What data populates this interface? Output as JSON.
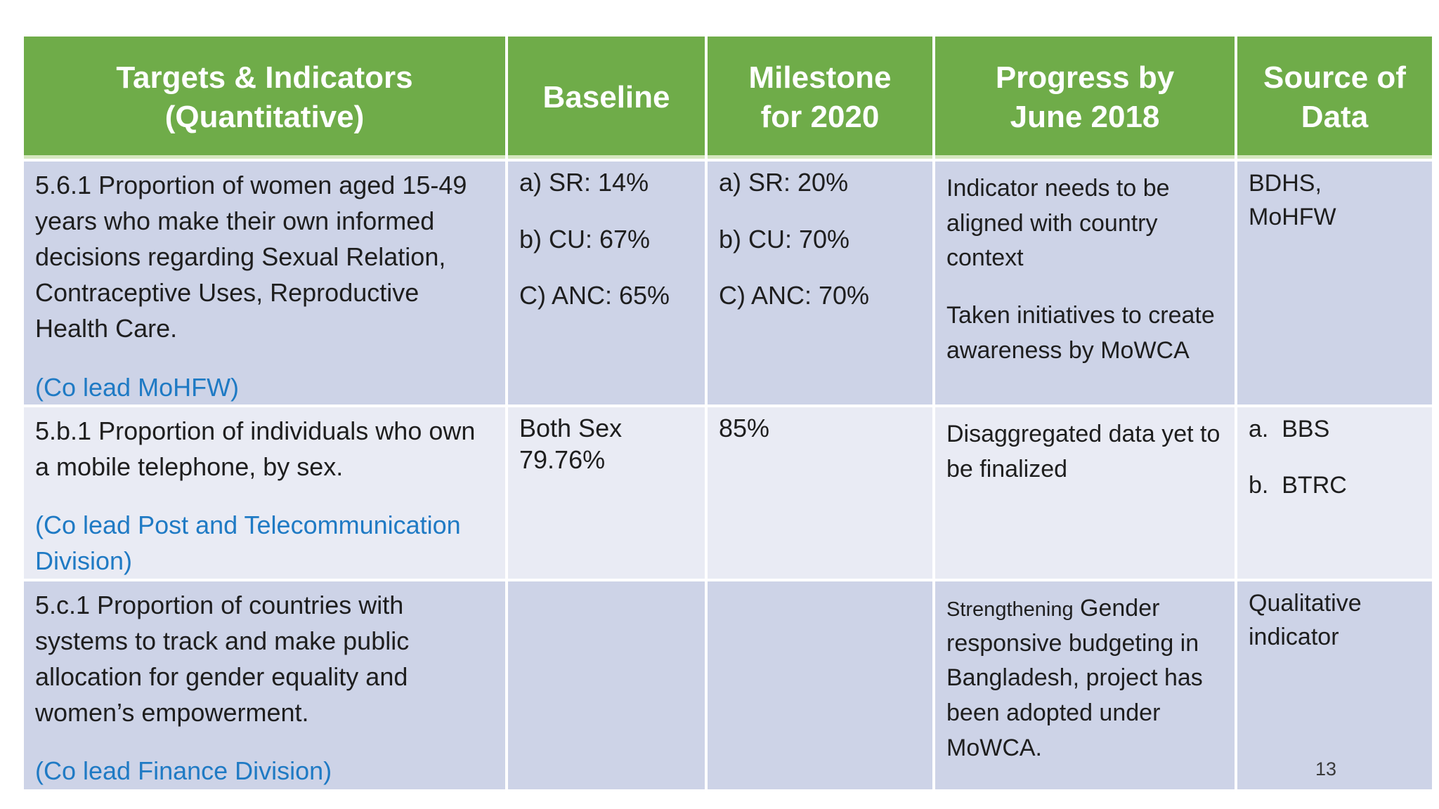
{
  "page": {
    "number": "13"
  },
  "theme": {
    "header_bg": "#6FAC49",
    "header_text": "#FFFFFF",
    "row_dark_bg": "#CDD3E7",
    "row_light_bg": "#E9EBF4",
    "body_text": "#1E1E1E",
    "co_lead_blue": "#1F7AC4"
  },
  "table": {
    "headers": [
      "Targets & Indicators\n(Quantitative)",
      "Baseline",
      "Milestone\nfor 2020",
      "Progress by\nJune 2018",
      "Source of\nData"
    ],
    "rows": [
      {
        "indicator": "5.6.1 Proportion of women aged 15-49 years who make their own informed decisions regarding Sexual Relation, Contraceptive Uses, Reproductive Health Care.",
        "co_lead": "(Co lead MoHFW)",
        "baseline": [
          "a) SR: 14%",
          "b) CU: 67%",
          "C) ANC: 65%"
        ],
        "milestone": [
          "a) SR: 20%",
          "b) CU: 70%",
          "C) ANC: 70%"
        ],
        "progress": [
          "Indicator needs to be aligned with country context",
          "Taken initiatives to create awareness by MoWCA"
        ],
        "source": [
          "BDHS,\nMoHFW"
        ]
      },
      {
        "indicator": "5.b.1 Proportion of individuals who own a mobile telephone, by sex.",
        "co_lead": "(Co lead Post and Telecommunication Division)",
        "baseline": [
          "Both Sex\n79.76%"
        ],
        "milestone": [
          "85%"
        ],
        "progress": [
          "Disaggregated data yet to be finalized"
        ],
        "source": [
          "a.  BBS",
          "b.  BTRC"
        ]
      },
      {
        "indicator": "5.c.1 Proportion of countries with systems to track and make public allocation for gender equality and women’s empowerment.",
        "co_lead": "(Co lead Finance Division)",
        "baseline": [],
        "milestone": [],
        "progress_small": "Strengthening",
        "progress_rest": " Gender responsive budgeting in Bangladesh, project has been adopted under MoWCA.",
        "source": [
          "Qualitative indicator"
        ]
      }
    ]
  }
}
